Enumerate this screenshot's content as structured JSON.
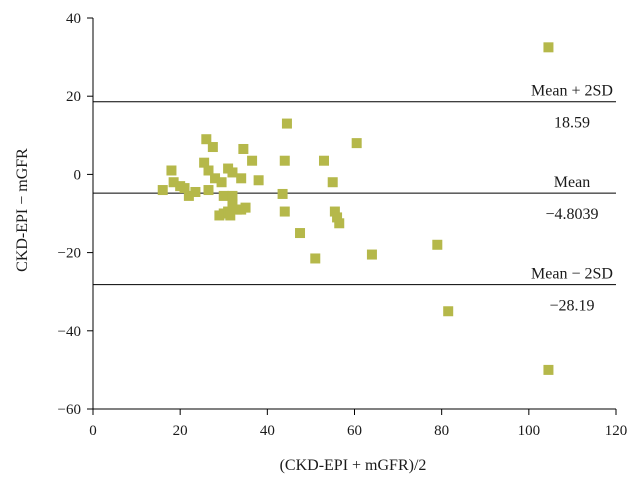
{
  "chart_data": {
    "type": "scatter",
    "title": "",
    "xlabel": "(CKD-EPI + mGFR)/2",
    "ylabel": "CKD-EPI − mGFR",
    "xlim": [
      0,
      120
    ],
    "ylim": [
      -60,
      40
    ],
    "xticks": [
      0,
      20,
      40,
      60,
      80,
      100,
      120
    ],
    "yticks": [
      -60,
      -40,
      -20,
      0,
      20,
      40
    ],
    "xtick_labels": [
      "0",
      "20",
      "40",
      "60",
      "80",
      "100",
      "120"
    ],
    "ytick_labels": [
      "−60",
      "−40",
      "−20",
      "0",
      "20",
      "40"
    ],
    "grid": false,
    "marker_color": "#b5b84a",
    "points": [
      [
        16,
        -4
      ],
      [
        18,
        1
      ],
      [
        18.5,
        -2
      ],
      [
        20,
        -3
      ],
      [
        21,
        -3.5
      ],
      [
        22,
        -5.5
      ],
      [
        23.5,
        -4.5
      ],
      [
        25.5,
        3
      ],
      [
        26,
        9
      ],
      [
        26.5,
        1
      ],
      [
        26.5,
        -4
      ],
      [
        27.5,
        7
      ],
      [
        28,
        -1
      ],
      [
        29,
        -10.5
      ],
      [
        29.5,
        -2
      ],
      [
        30,
        -10
      ],
      [
        30,
        -5.5
      ],
      [
        31,
        1.5
      ],
      [
        31,
        -9.5
      ],
      [
        31.5,
        -10.5
      ],
      [
        32,
        -5.5
      ],
      [
        32,
        0.5
      ],
      [
        32,
        -7.5
      ],
      [
        33,
        -9
      ],
      [
        34,
        -9
      ],
      [
        34,
        -1
      ],
      [
        34.5,
        6.5
      ],
      [
        35,
        -8.5
      ],
      [
        36.5,
        3.5
      ],
      [
        38,
        -1.5
      ],
      [
        43.5,
        -5
      ],
      [
        44,
        3.5
      ],
      [
        44,
        -9.5
      ],
      [
        44.5,
        13
      ],
      [
        47.5,
        -15
      ],
      [
        51,
        -21.5
      ],
      [
        53,
        3.5
      ],
      [
        55,
        -2
      ],
      [
        55.5,
        -9.5
      ],
      [
        56,
        -11
      ],
      [
        56.5,
        -12.5
      ],
      [
        60.5,
        8
      ],
      [
        64,
        -20.5
      ],
      [
        79,
        -18
      ],
      [
        81.5,
        -35
      ],
      [
        104.5,
        32.5
      ],
      [
        104.5,
        -50
      ]
    ],
    "reference_lines": [
      {
        "label": "Mean + 2SD",
        "value": 18.59,
        "value_label": "18.59"
      },
      {
        "label": "Mean",
        "value": -4.8039,
        "value_label": "−4.8039"
      },
      {
        "label": "Mean − 2SD",
        "value": -28.19,
        "value_label": "−28.19"
      }
    ]
  }
}
